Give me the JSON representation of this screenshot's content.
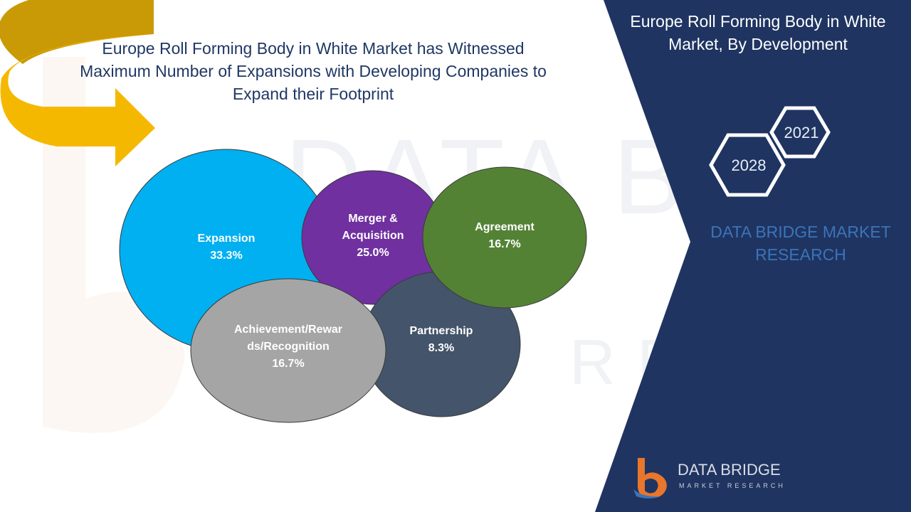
{
  "header": {
    "title": "Europe Roll Forming Body in White Market has Witnessed Maximum Number of Expansions with Developing Companies to Expand their Footprint"
  },
  "side_panel": {
    "title": "Europe Roll Forming Body in White Market, By Development",
    "year_start": "2021",
    "year_end": "2028",
    "brand_text": "DATA BRIDGE MARKET RESEARCH"
  },
  "logo": {
    "name": "DATA BRIDGE",
    "subtitle": "MARKET RESEARCH"
  },
  "colors": {
    "panel": "#1f3461",
    "title_text": "#1f3864",
    "arrow": "#f5b800",
    "arrow_dark": "#c99a06"
  },
  "chart_data": {
    "type": "bubble",
    "title": "",
    "series": [
      {
        "name": "Expansion",
        "label_lines": [
          "Expansion"
        ],
        "value": 33.3,
        "value_label": "33.3%",
        "color": "#00b0f0"
      },
      {
        "name": "Merger & Acquisition",
        "label_lines": [
          "Merger &",
          "Acquisition"
        ],
        "value": 25.0,
        "value_label": "25.0%",
        "color": "#7030a0"
      },
      {
        "name": "Agreement",
        "label_lines": [
          "Agreement"
        ],
        "value": 16.7,
        "value_label": "16.7%",
        "color": "#548235"
      },
      {
        "name": "Partnership",
        "label_lines": [
          "Partnership"
        ],
        "value": 8.3,
        "value_label": "8.3%",
        "color": "#44546a"
      },
      {
        "name": "Achievement/Rewards/Recognition",
        "label_lines": [
          "Achievement/Rewar",
          "ds/Recognition"
        ],
        "value": 16.7,
        "value_label": "16.7%",
        "color": "#a5a5a5"
      }
    ]
  }
}
